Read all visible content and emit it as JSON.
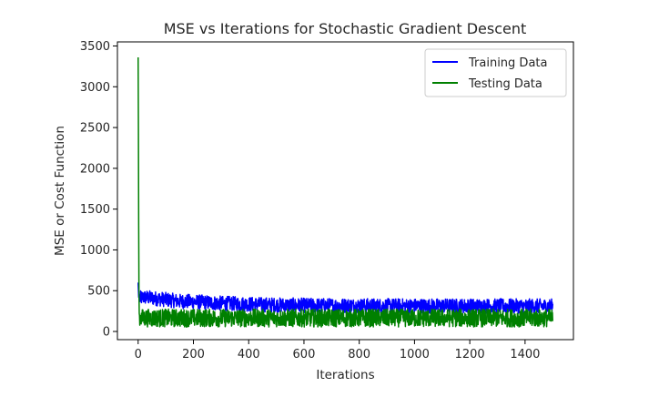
{
  "chart_data": {
    "type": "line",
    "title": "MSE vs Iterations for Stochastic Gradient Descent",
    "xlabel": "Iterations",
    "ylabel": "MSE or Cost Function",
    "xlim": [
      -75,
      1575
    ],
    "ylim": [
      -100,
      3550
    ],
    "xticks": [
      0,
      200,
      400,
      600,
      800,
      1000,
      1200,
      1400
    ],
    "yticks": [
      0,
      500,
      1000,
      1500,
      2000,
      2500,
      3000,
      3500
    ],
    "grid": false,
    "legend_position": "upper right",
    "series": [
      {
        "name": "Training Data",
        "color": "#0000ff",
        "x": [
          0,
          2,
          4,
          6,
          10,
          20,
          50,
          100,
          150,
          200,
          300,
          400,
          500,
          600,
          700,
          800,
          900,
          1000,
          1100,
          1200,
          1300,
          1400,
          1500
        ],
        "y": [
          600,
          420,
          450,
          400,
          410,
          420,
          410,
          390,
          370,
          365,
          345,
          335,
          325,
          320,
          318,
          316,
          315,
          314,
          313,
          312,
          312,
          311,
          311
        ],
        "noise_amplitude": 90
      },
      {
        "name": "Testing Data",
        "color": "#008000",
        "x": [
          0,
          1,
          2,
          3,
          4,
          6,
          10,
          20,
          50,
          100,
          200,
          300,
          400,
          500,
          600,
          700,
          800,
          900,
          1000,
          1100,
          1200,
          1300,
          1400,
          1500
        ],
        "y": [
          3360,
          2500,
          1300,
          500,
          220,
          170,
          165,
          165,
          165,
          165,
          165,
          165,
          165,
          165,
          165,
          165,
          165,
          165,
          165,
          165,
          165,
          165,
          165,
          165
        ],
        "noise_amplitude": 110
      }
    ]
  }
}
